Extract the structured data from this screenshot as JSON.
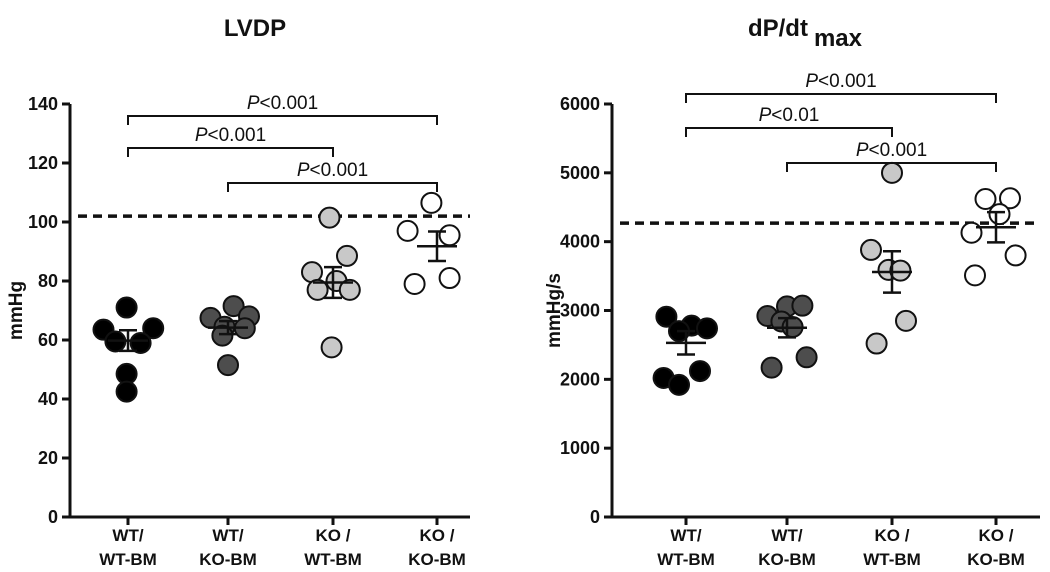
{
  "chart_data": [
    {
      "type": "scatter",
      "title": "LVDP",
      "ylabel": "mmHg",
      "xlabel": "",
      "ylim": [
        0,
        140
      ],
      "yticks": [
        0,
        20,
        40,
        60,
        80,
        100,
        120,
        140
      ],
      "reference_line": 102,
      "categories": [
        {
          "line1": "WT/",
          "line2": "WT-BM"
        },
        {
          "line1": "WT/",
          "line2": "KO-BM"
        },
        {
          "line1": "KO /",
          "line2": "WT-BM"
        },
        {
          "line1": "KO /",
          "line2": "KO-BM"
        }
      ],
      "series": [
        {
          "name": "WT/WT-BM",
          "color": "#000000",
          "points": [
            {
              "dx": -0.35,
              "y": 63.5
            },
            {
              "dx": -0.02,
              "y": 71
            },
            {
              "dx": 0.36,
              "y": 64
            },
            {
              "dx": -0.18,
              "y": 59.5
            },
            {
              "dx": 0.18,
              "y": 59
            },
            {
              "dx": -0.02,
              "y": 48.5
            },
            {
              "dx": -0.02,
              "y": 42.5
            }
          ],
          "mean": 59.8,
          "sem": 3.5
        },
        {
          "name": "WT/KO-BM",
          "color": "#4d4d4d",
          "points": [
            {
              "dx": -0.25,
              "y": 67.5
            },
            {
              "dx": 0.08,
              "y": 71.5
            },
            {
              "dx": 0.3,
              "y": 68
            },
            {
              "dx": -0.05,
              "y": 64.5
            },
            {
              "dx": 0.24,
              "y": 64
            },
            {
              "dx": -0.08,
              "y": 61.5
            },
            {
              "dx": 0.0,
              "y": 51.5
            }
          ],
          "mean": 64.2,
          "sem": 2.2
        },
        {
          "name": "KO/WT-BM",
          "color": "#c8c8c8",
          "points": [
            {
              "dx": -0.05,
              "y": 101.5
            },
            {
              "dx": 0.2,
              "y": 88.5
            },
            {
              "dx": -0.3,
              "y": 83
            },
            {
              "dx": 0.05,
              "y": 80
            },
            {
              "dx": -0.22,
              "y": 77
            },
            {
              "dx": 0.24,
              "y": 77
            },
            {
              "dx": -0.02,
              "y": 57.5
            }
          ],
          "mean": 79.5,
          "sem": 5.2
        },
        {
          "name": "KO/KO-BM",
          "color": "#ffffff",
          "points": [
            {
              "dx": -0.08,
              "y": 106.5
            },
            {
              "dx": -0.42,
              "y": 97
            },
            {
              "dx": 0.18,
              "y": 95.5
            },
            {
              "dx": -0.32,
              "y": 79
            },
            {
              "dx": 0.18,
              "y": 81
            }
          ],
          "mean": 91.8,
          "sem": 5.0
        }
      ],
      "comparisons": [
        {
          "from": 0,
          "to": 3,
          "label_italic": "P",
          "label_rest": "<0.001"
        },
        {
          "from": 0,
          "to": 2,
          "label_italic": "P",
          "label_rest": "<0.001"
        },
        {
          "from": 1,
          "to": 3,
          "label_italic": "P",
          "label_rest": "<0.001"
        }
      ]
    },
    {
      "type": "scatter",
      "title": "dP/dt",
      "title_subscript": "max",
      "ylabel": "mmHg/s",
      "xlabel": "",
      "ylim": [
        0,
        6000
      ],
      "yticks": [
        0,
        1000,
        2000,
        3000,
        4000,
        5000,
        6000
      ],
      "reference_line": 4270,
      "categories": [
        {
          "line1": "WT/",
          "line2": "WT-BM"
        },
        {
          "line1": "WT/",
          "line2": "KO-BM"
        },
        {
          "line1": "KO /",
          "line2": "WT-BM"
        },
        {
          "line1": "KO /",
          "line2": "KO-BM"
        }
      ],
      "series": [
        {
          "name": "WT/WT-BM",
          "color": "#000000",
          "points": [
            {
              "dx": -0.28,
              "y": 2910
            },
            {
              "dx": 0.08,
              "y": 2780
            },
            {
              "dx": 0.3,
              "y": 2740
            },
            {
              "dx": -0.1,
              "y": 2700
            },
            {
              "dx": 0.2,
              "y": 2120
            },
            {
              "dx": -0.32,
              "y": 2020
            },
            {
              "dx": -0.1,
              "y": 1920
            }
          ],
          "mean": 2530,
          "sem": 170
        },
        {
          "name": "WT/KO-BM",
          "color": "#4d4d4d",
          "points": [
            {
              "dx": -0.28,
              "y": 2920
            },
            {
              "dx": 0.0,
              "y": 3060
            },
            {
              "dx": 0.22,
              "y": 3070
            },
            {
              "dx": -0.08,
              "y": 2840
            },
            {
              "dx": 0.08,
              "y": 2760
            },
            {
              "dx": -0.22,
              "y": 2170
            },
            {
              "dx": 0.28,
              "y": 2320
            }
          ],
          "mean": 2750,
          "sem": 140
        },
        {
          "name": "KO/WT-BM",
          "color": "#c8c8c8",
          "points": [
            {
              "dx": 0.0,
              "y": 5000
            },
            {
              "dx": -0.3,
              "y": 3880
            },
            {
              "dx": -0.05,
              "y": 3590
            },
            {
              "dx": 0.12,
              "y": 3580
            },
            {
              "dx": 0.2,
              "y": 2850
            },
            {
              "dx": -0.22,
              "y": 2520
            }
          ],
          "mean": 3560,
          "sem": 300
        },
        {
          "name": "KO/KO-BM",
          "color": "#ffffff",
          "points": [
            {
              "dx": -0.15,
              "y": 4620
            },
            {
              "dx": 0.2,
              "y": 4630
            },
            {
              "dx": 0.05,
              "y": 4400
            },
            {
              "dx": -0.35,
              "y": 4130
            },
            {
              "dx": 0.28,
              "y": 3800
            },
            {
              "dx": -0.3,
              "y": 3510
            }
          ],
          "mean": 4210,
          "sem": 220
        }
      ],
      "comparisons": [
        {
          "from": 0,
          "to": 3,
          "label_italic": "P",
          "label_rest": "<0.001"
        },
        {
          "from": 0,
          "to": 2,
          "label_italic": "P",
          "label_rest": "<0.01"
        },
        {
          "from": 1,
          "to": 3,
          "label_italic": "P",
          "label_rest": "<0.001"
        }
      ]
    }
  ]
}
